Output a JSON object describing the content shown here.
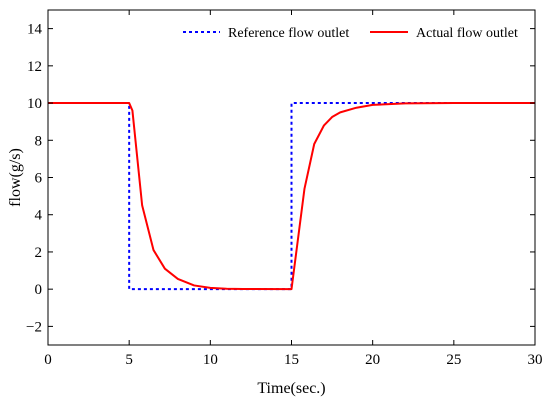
{
  "chart_data": {
    "type": "line",
    "title": "",
    "xlabel": "Time(sec.)",
    "ylabel": "flow(g/s)",
    "xlim": [
      0,
      30
    ],
    "ylim": [
      -3,
      15
    ],
    "xticks": [
      0,
      5,
      10,
      15,
      20,
      25,
      30
    ],
    "yticks": [
      -2,
      0,
      2,
      4,
      6,
      8,
      10,
      12,
      14
    ],
    "ytick_labels": [
      "−2",
      "0",
      "2",
      "4",
      "6",
      "8",
      "10",
      "12",
      "14"
    ],
    "grid": false,
    "legend_position": "top-right",
    "series": [
      {
        "name": "Reference flow outlet",
        "color": "#0000ff",
        "style": "dotted",
        "points": [
          [
            0,
            10
          ],
          [
            5,
            10
          ],
          [
            5,
            0
          ],
          [
            15,
            0
          ],
          [
            15,
            10
          ],
          [
            30,
            10
          ]
        ]
      },
      {
        "name": "Actual flow outlet",
        "color": "#ff0000",
        "style": "solid",
        "points": [
          [
            0,
            10
          ],
          [
            5,
            10
          ],
          [
            5.2,
            9.6
          ],
          [
            5.8,
            4.5
          ],
          [
            6.5,
            2.1
          ],
          [
            7.2,
            1.1
          ],
          [
            8.0,
            0.55
          ],
          [
            9.0,
            0.2
          ],
          [
            10.0,
            0.07
          ],
          [
            11.0,
            0.02
          ],
          [
            12.0,
            0.01
          ],
          [
            15.0,
            0.0
          ],
          [
            15.8,
            5.4
          ],
          [
            16.4,
            7.8
          ],
          [
            17.0,
            8.8
          ],
          [
            17.5,
            9.25
          ],
          [
            18.0,
            9.5
          ],
          [
            19.0,
            9.75
          ],
          [
            20.0,
            9.9
          ],
          [
            22.0,
            9.98
          ],
          [
            25.0,
            10
          ],
          [
            30.0,
            10
          ]
        ]
      }
    ]
  }
}
